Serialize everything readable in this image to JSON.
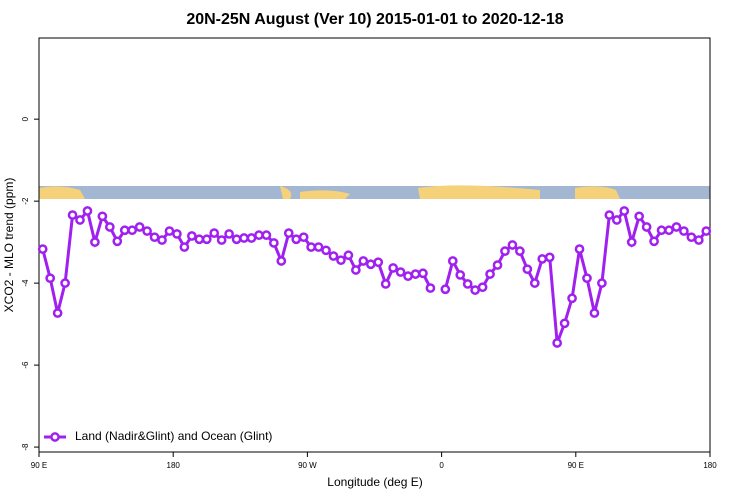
{
  "chart_data": {
    "type": "line",
    "title": "20N-25N August (Ver 10)   2015-01-01 to 2020-12-18",
    "xlabel": "Longitude (deg E)",
    "ylabel": "XCO2 - MLO trend (ppm)",
    "xlim": [
      90,
      540
    ],
    "ylim": [
      -8.12,
      1.98
    ],
    "xticks": [
      {
        "value": 90,
        "label": "90 E"
      },
      180,
      {
        "value": 270,
        "label": "90 W"
      },
      {
        "value": 360,
        "label": "0"
      },
      {
        "value": 450,
        "label": "90 E"
      },
      {
        "value": 540,
        "label": "180"
      }
    ],
    "yticks": [
      0,
      -2,
      -4,
      -6,
      -8
    ],
    "legend": "bottom-left",
    "x": [
      92.5,
      97.5,
      102.5,
      107.5,
      112.5,
      117.5,
      122.5,
      127.5,
      132.5,
      137.5,
      142.5,
      147.5,
      152.5,
      157.5,
      162.5,
      167.5,
      172.5,
      177.5,
      182.5,
      187.5,
      192.5,
      197.5,
      202.5,
      207.5,
      212.5,
      217.5,
      222.5,
      227.5,
      232.5,
      237.5,
      242.5,
      247.5,
      252.5,
      257.5,
      262.5,
      267.5,
      272.5,
      277.5,
      282.5,
      287.5,
      292.5,
      297.5,
      302.5,
      307.5,
      312.5,
      317.5,
      322.5,
      327.5,
      332.5,
      337.5,
      342.5,
      347.5,
      352.5,
      357.5,
      362.5,
      367.5,
      372.5,
      377.5,
      382.5,
      387.5,
      392.5,
      397.5,
      402.5,
      407.5,
      412.5,
      417.5,
      422.5,
      427.5,
      432.5,
      437.5,
      442.5,
      447.5,
      452.5,
      457.5,
      462.5,
      467.5,
      472.5,
      477.5,
      482.5,
      487.5,
      492.5,
      497.5,
      502.5,
      507.5,
      512.5,
      517.5,
      522.5,
      527.5,
      532.5,
      537.5
    ],
    "series": [
      {
        "name": "Land (Nadir&Glint) and Ocean (Glint)",
        "color": "#a020f0",
        "values": [
          -3.17,
          -3.88,
          -4.73,
          -4.0,
          -2.34,
          -2.46,
          -2.24,
          -3.0,
          -2.37,
          -2.63,
          -2.98,
          -2.71,
          -2.71,
          -2.63,
          -2.73,
          -2.88,
          -2.95,
          -2.73,
          -2.8,
          -3.12,
          -2.85,
          -2.93,
          -2.93,
          -2.78,
          -2.95,
          -2.8,
          -2.93,
          -2.9,
          -2.9,
          -2.83,
          -2.83,
          -3.02,
          -3.46,
          -2.78,
          -2.93,
          -2.88,
          -3.12,
          -3.12,
          -3.2,
          -3.34,
          -3.44,
          -3.32,
          -3.68,
          -3.46,
          -3.54,
          -3.49,
          -4.02,
          -3.63,
          -3.73,
          -3.83,
          -3.78,
          -3.76,
          -4.12,
          null,
          -4.15,
          -3.46,
          -3.8,
          -4.02,
          -4.17,
          -4.1,
          -3.78,
          -3.56,
          -3.22,
          -3.07,
          -3.22,
          -3.66,
          -4.0,
          -3.41,
          -3.37,
          -5.46,
          -4.98,
          -4.37,
          -3.17,
          -3.88,
          -4.73,
          -4.0,
          -2.34,
          -2.46,
          -2.24,
          -3.0,
          -2.37,
          -2.63,
          -2.98,
          -2.71,
          -2.71,
          -2.63,
          -2.73,
          -2.88,
          -2.95,
          -2.73
        ]
      }
    ]
  }
}
